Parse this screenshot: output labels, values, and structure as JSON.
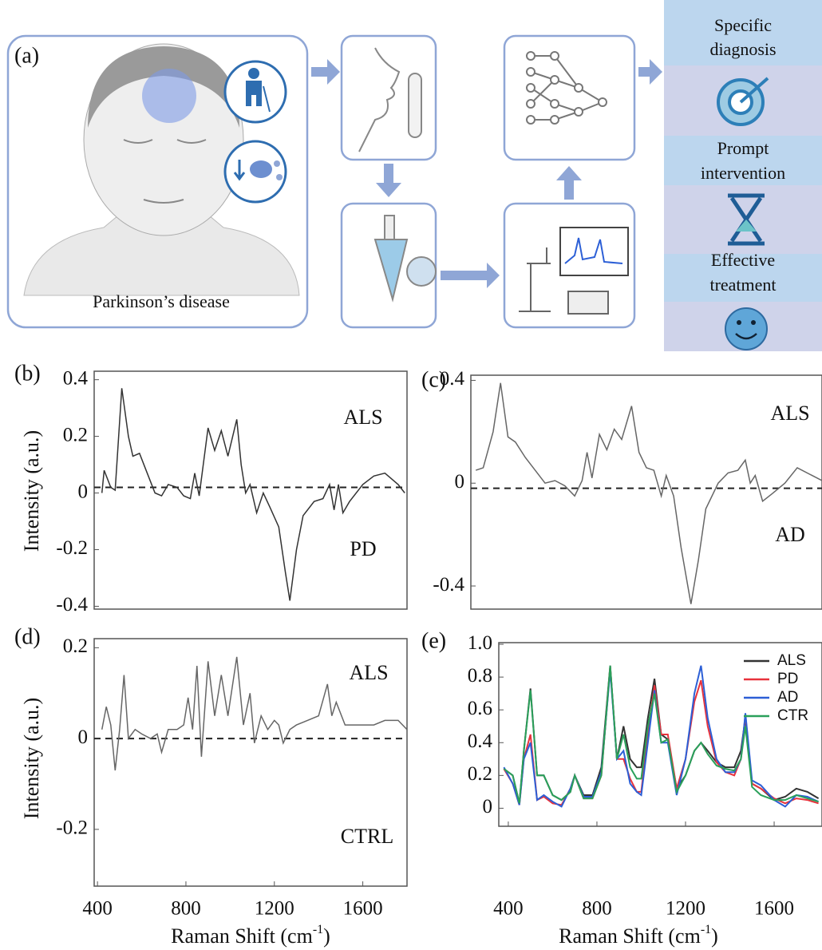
{
  "diagram": {
    "panel_label": "(a)",
    "disease_label": "Parkinson’s disease",
    "outcomes": [
      [
        "Specific",
        "diagnosis"
      ],
      [
        "Prompt",
        "intervention"
      ],
      [
        "Effective",
        "treatment"
      ]
    ]
  },
  "chart_data": [
    {
      "type": "line",
      "panel_label": "(b)",
      "ylabel": "Intensity (a.u.)",
      "xlim": [
        385,
        1800
      ],
      "ylim": [
        -0.41,
        0.43
      ],
      "yticks": [
        -0.4,
        -0.2,
        0,
        0.2,
        0.4
      ],
      "hline": 0.02,
      "annotations": [
        "ALS",
        "PD"
      ],
      "x": [
        420,
        430,
        460,
        480,
        510,
        540,
        560,
        590,
        620,
        660,
        690,
        720,
        760,
        790,
        820,
        840,
        860,
        900,
        930,
        960,
        990,
        1030,
        1050,
        1070,
        1090,
        1120,
        1150,
        1180,
        1220,
        1250,
        1270,
        1300,
        1330,
        1380,
        1420,
        1450,
        1470,
        1490,
        1510,
        1540,
        1600,
        1650,
        1700,
        1760,
        1790
      ],
      "series": [
        {
          "color": "#333333",
          "values": [
            0.0,
            0.08,
            0.02,
            0.01,
            0.37,
            0.2,
            0.13,
            0.14,
            0.08,
            0.0,
            -0.01,
            0.03,
            0.02,
            -0.01,
            -0.02,
            0.07,
            -0.01,
            0.23,
            0.15,
            0.22,
            0.13,
            0.26,
            0.1,
            0.0,
            0.03,
            -0.07,
            0.0,
            -0.05,
            -0.12,
            -0.28,
            -0.38,
            -0.2,
            -0.08,
            -0.03,
            -0.02,
            0.03,
            -0.06,
            0.03,
            -0.07,
            -0.03,
            0.03,
            0.06,
            0.07,
            0.03,
            0.0
          ]
        }
      ]
    },
    {
      "type": "line",
      "panel_label": "(c)",
      "xlim": [
        380,
        1800
      ],
      "ylim": [
        -0.49,
        0.42
      ],
      "yticks": [
        -0.4,
        0,
        0.4
      ],
      "hline": -0.02,
      "annotations": [
        "ALS",
        "AD"
      ],
      "x": [
        400,
        430,
        470,
        500,
        530,
        560,
        600,
        640,
        680,
        720,
        760,
        800,
        830,
        850,
        870,
        900,
        930,
        960,
        990,
        1030,
        1060,
        1090,
        1120,
        1150,
        1170,
        1200,
        1230,
        1270,
        1300,
        1330,
        1380,
        1420,
        1460,
        1490,
        1510,
        1530,
        1560,
        1600,
        1650,
        1700,
        1760,
        1800
      ],
      "series": [
        {
          "color": "#666666",
          "values": [
            0.05,
            0.06,
            0.2,
            0.39,
            0.18,
            0.16,
            0.1,
            0.05,
            0.0,
            0.01,
            -0.01,
            -0.05,
            0.01,
            0.12,
            0.02,
            0.19,
            0.13,
            0.21,
            0.17,
            0.3,
            0.12,
            0.06,
            0.05,
            -0.05,
            0.03,
            -0.05,
            -0.25,
            -0.47,
            -0.3,
            -0.1,
            0.0,
            0.04,
            0.05,
            0.09,
            0.0,
            0.03,
            -0.07,
            -0.04,
            0.0,
            0.06,
            0.03,
            0.01
          ]
        }
      ]
    },
    {
      "type": "line",
      "panel_label": "(d)",
      "ylabel": "Intensity (a.u.)",
      "xlabel": [
        "Raman Shift (cm",
        "-1",
        ")"
      ],
      "xlim": [
        385,
        1800
      ],
      "ylim": [
        -0.325,
        0.22
      ],
      "yticks": [
        -0.2,
        0,
        0.2
      ],
      "xticks": [
        400,
        800,
        1200,
        1600
      ],
      "hline": 0,
      "annotations": [
        "ALS",
        "CTRL"
      ],
      "x": [
        420,
        440,
        460,
        480,
        500,
        520,
        540,
        570,
        600,
        640,
        670,
        690,
        720,
        760,
        790,
        810,
        830,
        850,
        870,
        900,
        930,
        960,
        990,
        1030,
        1060,
        1090,
        1110,
        1140,
        1170,
        1200,
        1220,
        1240,
        1270,
        1300,
        1350,
        1400,
        1440,
        1460,
        1480,
        1520,
        1560,
        1600,
        1650,
        1700,
        1760,
        1800
      ],
      "series": [
        {
          "color": "#666666",
          "values": [
            0.02,
            0.07,
            0.03,
            -0.07,
            0.02,
            0.14,
            0.0,
            0.02,
            0.01,
            0.0,
            0.01,
            -0.03,
            0.02,
            0.02,
            0.03,
            0.09,
            0.02,
            0.16,
            -0.04,
            0.17,
            0.05,
            0.14,
            0.05,
            0.18,
            0.03,
            0.1,
            -0.01,
            0.05,
            0.02,
            0.04,
            0.03,
            -0.01,
            0.02,
            0.03,
            0.04,
            0.05,
            0.12,
            0.05,
            0.08,
            0.03,
            0.03,
            0.03,
            0.03,
            0.04,
            0.04,
            0.02
          ]
        }
      ]
    },
    {
      "type": "line",
      "panel_label": "(e)",
      "xlabel": [
        "Raman Shift (cm",
        "-1",
        ")"
      ],
      "xlim": [
        357,
        1816
      ],
      "ylim": [
        -0.11,
        1.01
      ],
      "yticks": [
        0,
        0.2,
        0.4,
        0.6,
        0.8,
        {
          "value": 1,
          "label": "1.0"
        }
      ],
      "xticks": [
        400,
        800,
        1200,
        1600
      ],
      "legend": "upper right",
      "x": [
        380,
        420,
        450,
        470,
        500,
        530,
        560,
        600,
        640,
        680,
        700,
        740,
        780,
        820,
        860,
        890,
        920,
        950,
        980,
        1000,
        1030,
        1060,
        1090,
        1120,
        1160,
        1200,
        1240,
        1270,
        1300,
        1340,
        1380,
        1420,
        1450,
        1470,
        1500,
        1540,
        1600,
        1650,
        1700,
        1750,
        1800
      ],
      "series": [
        {
          "name": "ALS",
          "color": "#333333",
          "values": [
            0.24,
            0.2,
            0.03,
            0.35,
            0.73,
            0.2,
            0.2,
            0.08,
            0.05,
            0.1,
            0.2,
            0.08,
            0.08,
            0.25,
            0.87,
            0.3,
            0.5,
            0.3,
            0.25,
            0.25,
            0.55,
            0.79,
            0.45,
            0.42,
            0.12,
            0.2,
            0.35,
            0.4,
            0.35,
            0.28,
            0.25,
            0.25,
            0.35,
            0.55,
            0.15,
            0.12,
            0.05,
            0.07,
            0.12,
            0.1,
            0.06
          ]
        },
        {
          "name": "PD",
          "color": "#e8323c",
          "values": [
            0.24,
            0.15,
            0.02,
            0.3,
            0.45,
            0.05,
            0.07,
            0.03,
            0.02,
            0.12,
            0.2,
            0.06,
            0.06,
            0.2,
            0.86,
            0.3,
            0.3,
            0.18,
            0.1,
            0.1,
            0.45,
            0.75,
            0.45,
            0.45,
            0.12,
            0.3,
            0.65,
            0.78,
            0.5,
            0.28,
            0.22,
            0.2,
            0.3,
            0.57,
            0.15,
            0.12,
            0.06,
            0.03,
            0.06,
            0.05,
            0.03
          ]
        },
        {
          "name": "AD",
          "color": "#2c5fd6",
          "values": [
            0.25,
            0.15,
            0.02,
            0.3,
            0.4,
            0.05,
            0.08,
            0.04,
            0.01,
            0.12,
            0.2,
            0.07,
            0.07,
            0.22,
            0.84,
            0.3,
            0.35,
            0.15,
            0.1,
            0.08,
            0.4,
            0.72,
            0.4,
            0.4,
            0.08,
            0.3,
            0.7,
            0.87,
            0.55,
            0.3,
            0.22,
            0.22,
            0.3,
            0.58,
            0.17,
            0.14,
            0.05,
            0.01,
            0.08,
            0.07,
            0.04
          ]
        },
        {
          "name": "CTR",
          "color": "#2aa05a",
          "values": [
            0.24,
            0.2,
            0.03,
            0.35,
            0.72,
            0.2,
            0.2,
            0.08,
            0.05,
            0.1,
            0.2,
            0.06,
            0.06,
            0.2,
            0.87,
            0.3,
            0.45,
            0.25,
            0.18,
            0.18,
            0.5,
            0.7,
            0.4,
            0.42,
            0.1,
            0.2,
            0.35,
            0.4,
            0.33,
            0.26,
            0.24,
            0.23,
            0.3,
            0.5,
            0.13,
            0.08,
            0.05,
            0.05,
            0.08,
            0.06,
            0.04
          ]
        }
      ]
    }
  ]
}
